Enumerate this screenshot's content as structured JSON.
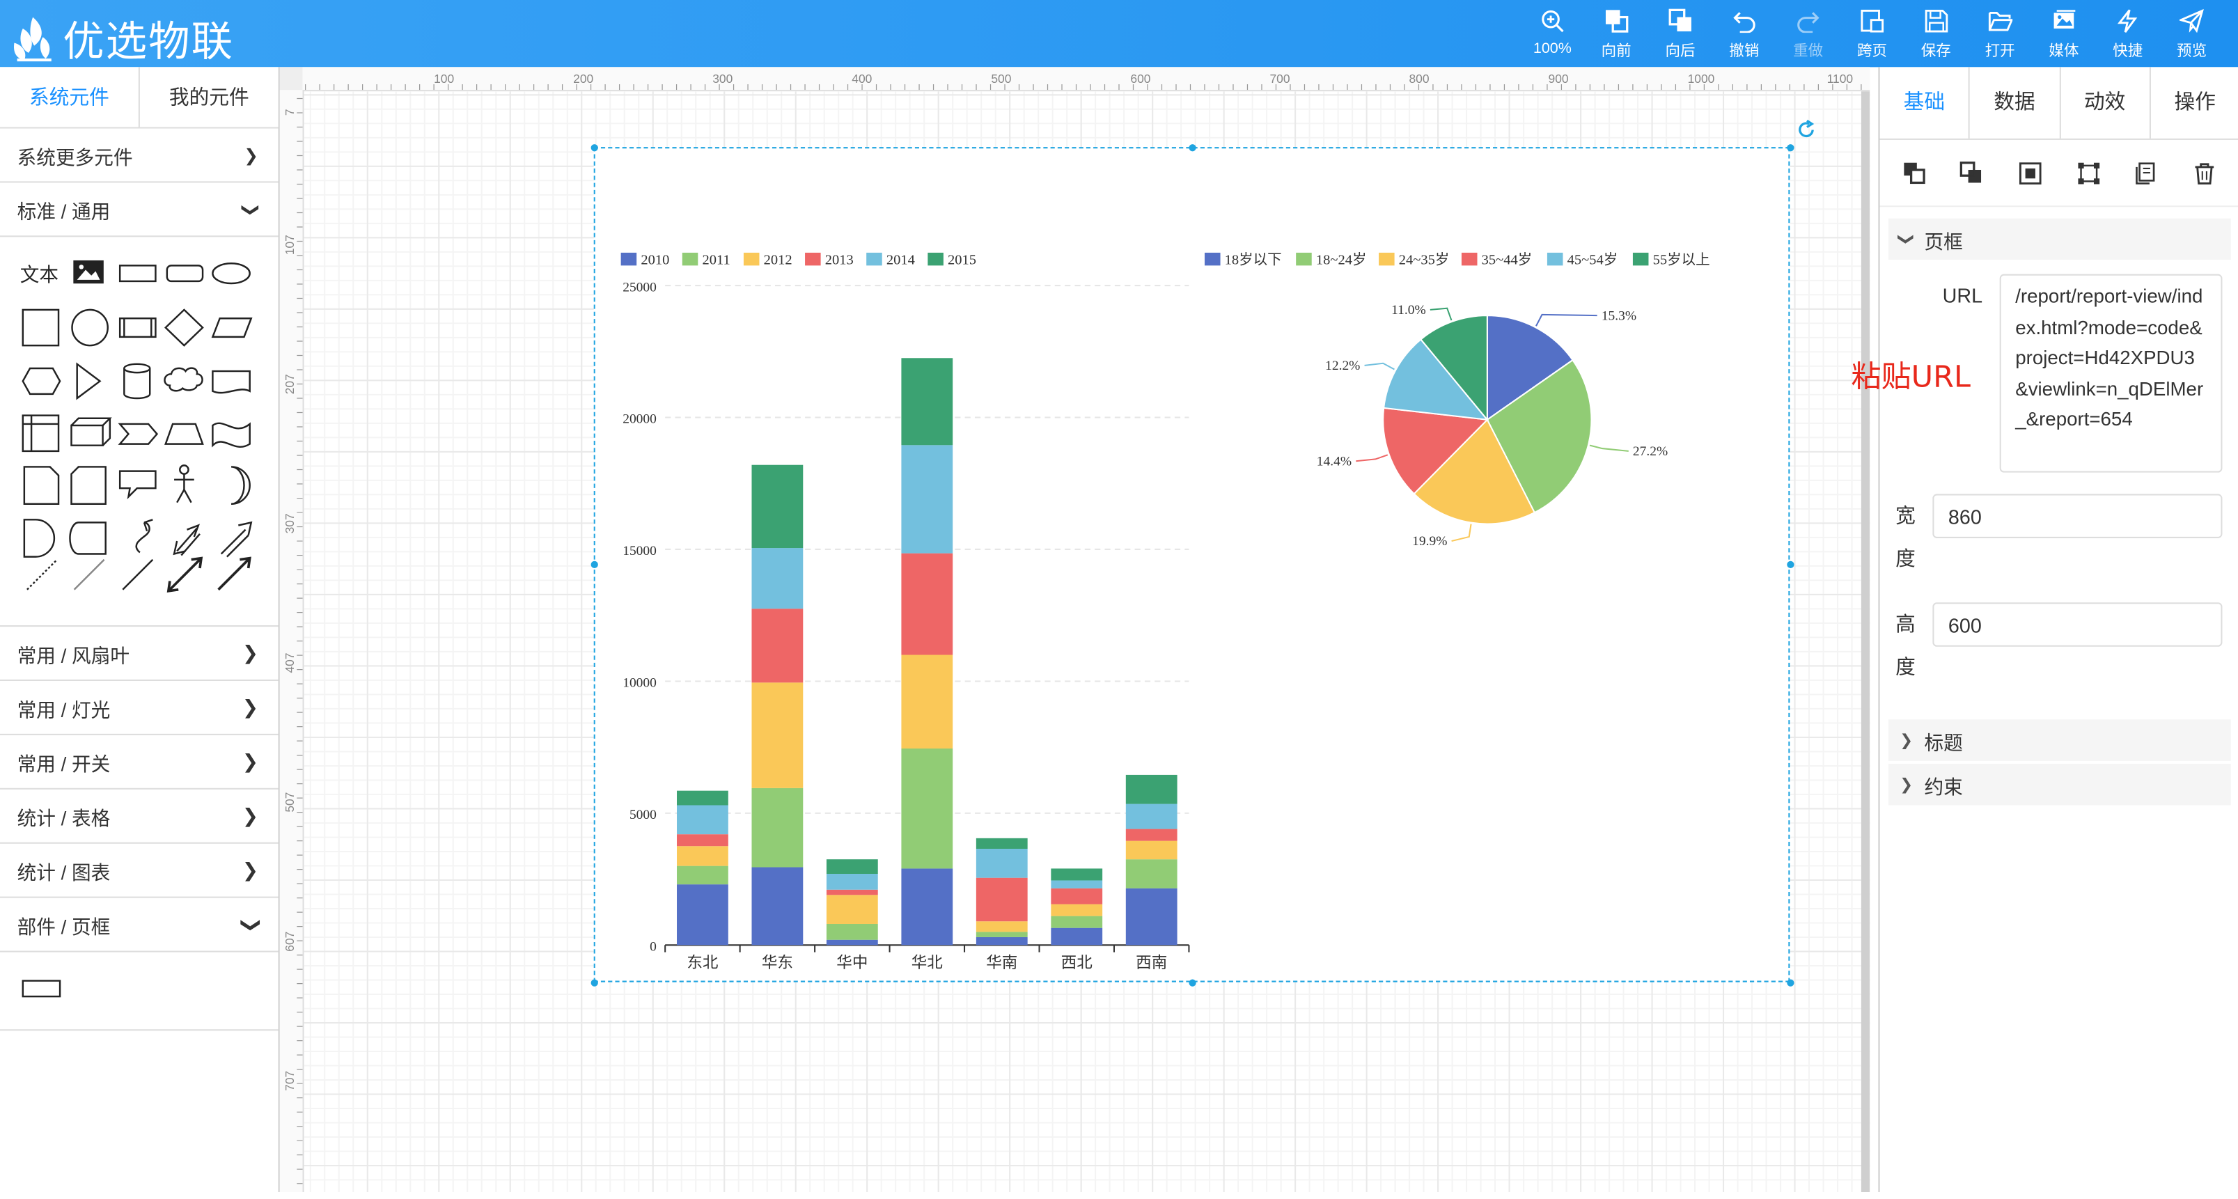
{
  "app": {
    "title": "优选物联"
  },
  "toolbar": [
    {
      "label": "100%",
      "icon": "zoom-in-icon"
    },
    {
      "label": "向前",
      "icon": "bring-forward-icon"
    },
    {
      "label": "向后",
      "icon": "send-backward-icon"
    },
    {
      "label": "撤销",
      "icon": "undo-icon"
    },
    {
      "label": "重做",
      "icon": "redo-icon",
      "disabled": true
    },
    {
      "label": "跨页",
      "icon": "cross-page-icon"
    },
    {
      "label": "保存",
      "icon": "save-icon"
    },
    {
      "label": "打开",
      "icon": "folder-open-icon"
    },
    {
      "label": "媒体",
      "icon": "media-icon"
    },
    {
      "label": "快捷",
      "icon": "lightning-icon"
    },
    {
      "label": "预览",
      "icon": "send-icon"
    }
  ],
  "left": {
    "tabs": [
      "系统元件",
      "我的元件"
    ],
    "more": "系统更多元件",
    "standard": "标准 / 通用",
    "text_shape": "文本",
    "groups": [
      "常用 / 风扇叶",
      "常用 / 灯光",
      "常用 / 开关",
      "统计 / 表格",
      "统计 / 图表"
    ],
    "frame_group": "部件 / 页框"
  },
  "ruler": {
    "top": [
      "100",
      "200",
      "300",
      "400",
      "500",
      "600",
      "700",
      "800",
      "900",
      "1000",
      "1100"
    ],
    "left": [
      "7",
      "107",
      "207",
      "307",
      "407",
      "507",
      "607",
      "707"
    ]
  },
  "right": {
    "tabs": [
      "基础",
      "数据",
      "动效",
      "操作"
    ],
    "sections": {
      "frame": "页框",
      "title": "标题",
      "constraint": "约束"
    },
    "fields": {
      "url_label": "URL",
      "url_value": "/report/report-view/index.html?mode=code&project=Hd42XPDU3&viewlink=n_qDElMer_&report=654",
      "width_label": "宽度",
      "width_value": "860",
      "height_label": "高度",
      "height_value": "600"
    }
  },
  "annotation": "粘贴URL",
  "colors": {
    "header": "#1e90f0",
    "accent": "#1890ff",
    "selection": "#1fa4e0",
    "annotation": "#e8281b"
  },
  "chart_data": [
    {
      "type": "bar",
      "stacked": true,
      "categories": [
        "东北",
        "华东",
        "华中",
        "华北",
        "华南",
        "西北",
        "西南"
      ],
      "series": [
        {
          "name": "2010",
          "color": "#5470c6",
          "values": [
            2300,
            2950,
            200,
            2900,
            300,
            650,
            2150
          ]
        },
        {
          "name": "2011",
          "color": "#91cc75",
          "values": [
            700,
            3000,
            600,
            4550,
            200,
            450,
            1100
          ]
        },
        {
          "name": "2012",
          "color": "#fac858",
          "values": [
            750,
            4000,
            1100,
            3550,
            400,
            450,
            700
          ]
        },
        {
          "name": "2013",
          "color": "#ee6666",
          "values": [
            450,
            2800,
            200,
            3850,
            1650,
            600,
            450
          ]
        },
        {
          "name": "2014",
          "color": "#73c0de",
          "values": [
            1100,
            2300,
            600,
            4100,
            1100,
            300,
            950
          ]
        },
        {
          "name": "2015",
          "color": "#3ba272",
          "values": [
            550,
            3150,
            550,
            3300,
            400,
            450,
            1100
          ]
        }
      ],
      "ylim": [
        0,
        25000
      ],
      "yticks": [
        "0",
        "5000",
        "10000",
        "15000",
        "20000",
        "25000"
      ],
      "legend": "top-left"
    },
    {
      "type": "pie",
      "labels": [
        "18岁以下",
        "18~24岁",
        "24~35岁",
        "35~44岁",
        "45~54岁",
        "55岁以上"
      ],
      "legend_labels": [
        "18岁以下",
        "18~24岁",
        "24~35岁",
        "35~44岁",
        "45~54岁",
        "55岁以上"
      ],
      "values": [
        15.3,
        27.2,
        19.9,
        14.4,
        12.2,
        11.0
      ],
      "value_labels": [
        "15.3%",
        "27.2%",
        "19.9%",
        "14.4%",
        "12.2%",
        "11.0%"
      ],
      "colors": [
        "#5470c6",
        "#91cc75",
        "#fac858",
        "#ee6666",
        "#73c0de",
        "#3ba272"
      ],
      "legend": "top"
    }
  ]
}
